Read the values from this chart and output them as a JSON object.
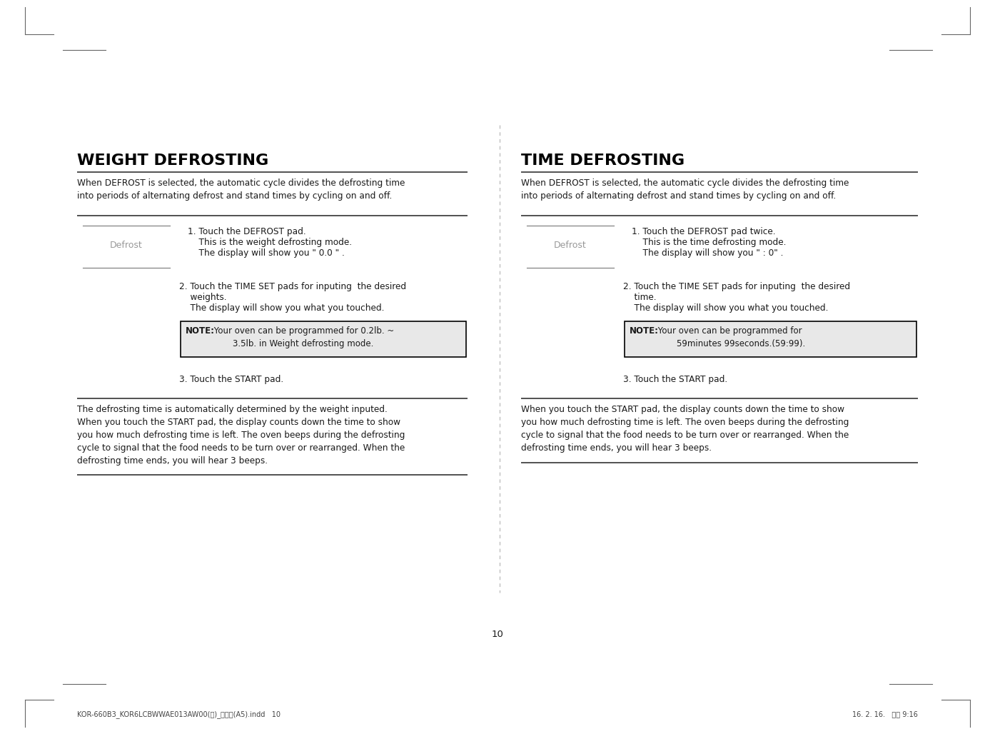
{
  "bg_color": "#ffffff",
  "page_number": "10",
  "footer_left": "KOR-660B3_KOR6LCBWWAE013AW00(영)_미주향(A5).indd   10",
  "footer_right": "16. 2. 16.   오전 9:16",
  "left_title": "WEIGHT DEFROSTING",
  "right_title": "TIME DEFROSTING",
  "left_intro": "When DEFROST is selected, the automatic cycle divides the defrosting time\ninto periods of alternating defrost and stand times by cycling on and off.",
  "right_intro": "When DEFROST is selected, the automatic cycle divides the defrosting time\ninto periods of alternating defrost and stand times by cycling on and off.",
  "defrost_label": "Defrost",
  "left_step1_line1": "1. Touch the DEFROST pad.",
  "left_step1_line2": "    This is the weight defrosting mode.",
  "left_step1_line3": "    The display will show you \" 0.0 \" .",
  "left_step2_line1": "2. Touch the TIME SET pads for inputing  the desired",
  "left_step2_line2": "    weights.",
  "left_step2_line3": "    The display will show you what you touched.",
  "left_note_bold": "NOTE:",
  "left_note_rest": " Your oven can be programmed for 0.2lb. ~",
  "left_note_line2": "        3.5lb. in Weight defrosting mode.",
  "left_step3": "3. Touch the START pad.",
  "left_bottom": "The defrosting time is automatically determined by the weight inputed.\nWhen you touch the START pad, the display counts down the time to show\nyou how much defrosting time is left. The oven beeps during the defrosting\ncycle to signal that the food needs to be turn over or rearranged. When the\ndefrosting time ends, you will hear 3 beeps.",
  "right_step1_line1": "1. Touch the DEFROST pad twice.",
  "right_step1_line2": "    This is the time defrosting mode.",
  "right_step1_line3": "    The display will show you \" : 0\" .",
  "right_step2_line1": "2. Touch the TIME SET pads for inputing  the desired",
  "right_step2_line2": "    time.",
  "right_step2_line3": "    The display will show you what you touched.",
  "right_note_bold": "NOTE:",
  "right_note_rest": " Your oven can be programmed for",
  "right_note_line2": "        59minutes 99seconds.(59:99).",
  "right_step3": "3. Touch the START pad.",
  "right_bottom": "When you touch the START pad, the display counts down the time to show\nyou how much defrosting time is left. The oven beeps during the defrosting\ncycle to signal that the food needs to be turn over or rearranged. When the\ndefrosting time ends, you will hear 3 beeps.",
  "note_bg": "#e8e8e8",
  "note_border": "#000000",
  "text_color": "#1a1a1a",
  "title_color": "#000000",
  "defrost_color": "#999999",
  "line_color": "#333333",
  "divider_color": "#aaaaaa",
  "mark_color": "#666666",
  "footer_color": "#444444"
}
